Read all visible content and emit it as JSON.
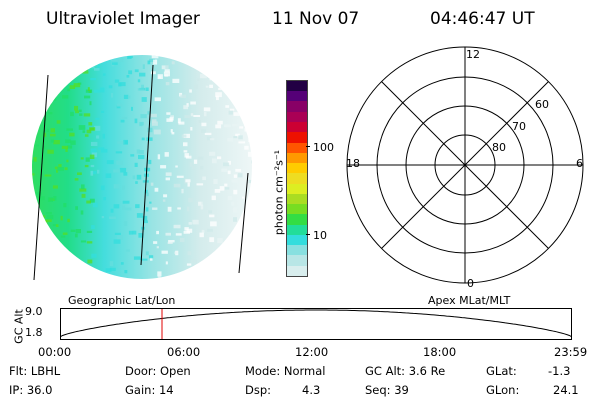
{
  "header": {
    "title": "Ultraviolet Imager",
    "date": "11 Nov 07",
    "time": "04:46:47 UT"
  },
  "colorbar": {
    "label": "photon cm⁻²s⁻¹",
    "ticks": [
      {
        "label": "100",
        "value": 100
      },
      {
        "label": "10",
        "value": 10
      }
    ],
    "colors": [
      "#d9eeee",
      "#b8e6e6",
      "#88e0e0",
      "#33dddd",
      "#22dd99",
      "#33dd44",
      "#77dd22",
      "#aadd22",
      "#ddee22",
      "#eedd22",
      "#ffcc00",
      "#ff9900",
      "#ff5500",
      "#ee1100",
      "#cc0033",
      "#aa0055",
      "#880066",
      "#550077",
      "#220044"
    ]
  },
  "polar": {
    "mlt_labels": {
      "top": "12",
      "left": "18",
      "right": "6",
      "bottom": "0"
    },
    "lat_labels": [
      "60",
      "70",
      "80"
    ]
  },
  "timeline": {
    "left_label": "Geographic Lat/Lon",
    "right_label": "Apex MLat/MLT",
    "axis_label": "GC Alt",
    "y_ticks": [
      "9.0",
      "1.8"
    ],
    "x_ticks": [
      "00:00",
      "06:00",
      "12:00",
      "18:00",
      "23:59"
    ],
    "current_time_hours": 4.78
  },
  "info": {
    "filter": "Flt: LBHL",
    "ip": "IP: 36.0",
    "door": "Door: Open",
    "gain": "Gain: 14",
    "mode": "Mode: Normal",
    "dsp_label": "Dsp:",
    "dsp_value": "4.3",
    "gc_alt": "GC Alt: 3.6 Re",
    "seq": "Seq: 39",
    "glat_label": "GLat:",
    "glat_value": "-1.3",
    "glon_label": "GLon:",
    "glon_value": "24.1"
  }
}
